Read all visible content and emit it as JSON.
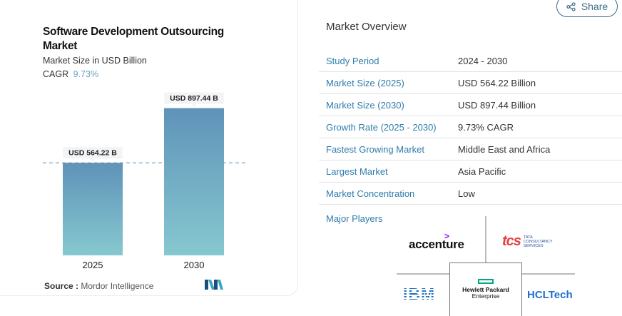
{
  "share": {
    "label": "Share"
  },
  "chart_panel": {
    "title": "Software Development Outsourcing Market",
    "subtitle": "Market Size in USD Billion",
    "cagr_label": "CAGR",
    "cagr_value": "9.73%",
    "source_label": "Source :",
    "source_value": "Mordor Intelligence"
  },
  "chart_data": {
    "type": "bar",
    "categories": [
      "2025",
      "2030"
    ],
    "values": [
      564.22,
      897.44
    ],
    "data_labels": [
      "USD 564.22 B",
      "USD 897.44 B"
    ],
    "title": "Software Development Outsourcing Market",
    "ylabel": "Market Size in USD Billion",
    "ylim": [
      0,
      1000
    ],
    "grid": false,
    "reference_line": 564.22,
    "colors": {
      "bar_top": "#5f93b9",
      "bar_bottom": "#86c8cf"
    }
  },
  "overview": {
    "title": "Market Overview",
    "rows": [
      {
        "key": "Study Period",
        "value": "2024 - 2030"
      },
      {
        "key": "Market Size (2025)",
        "value": "USD 564.22 Billion"
      },
      {
        "key": "Market Size (2030)",
        "value": "USD 897.44 Billion"
      },
      {
        "key": "Growth Rate (2025 - 2030)",
        "value": "9.73% CAGR"
      },
      {
        "key": "Fastest Growing Market",
        "value": "Middle East and Africa"
      },
      {
        "key": "Largest Market",
        "value": "Asia Pacific"
      },
      {
        "key": "Market Concentration",
        "value": "Low"
      }
    ],
    "major_players_label": "Major Players",
    "players": {
      "accenture": "accenture",
      "tcs_mark": "tcs",
      "tcs_text": "TATA CONSULTANCY SERVICES",
      "ibm": "IBM",
      "hpe_line1": "Hewlett Packard",
      "hpe_line2": "Enterprise",
      "hcl": "HCLTech"
    }
  },
  "colors": {
    "link": "#2f7dab",
    "accent": "#6aa5c0"
  }
}
